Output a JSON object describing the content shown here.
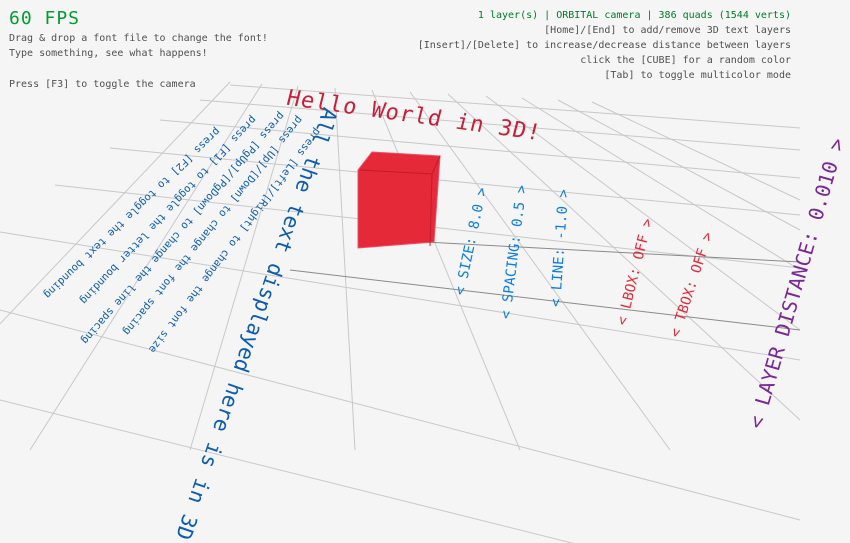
{
  "hud": {
    "fps": "60 FPS",
    "left_lines": [
      "Drag & drop a font file to change the font!",
      "Type something, see what happens!",
      "Press [F3] to toggle the camera"
    ],
    "status": "1 layer(s) | ORBITAL camera |  386 quads (1544 verts)",
    "right_lines": [
      "[Home]/[End] to add/remove 3D text layers",
      "[Insert]/[Delete] to increase/decrease distance between layers",
      "click the [CUBE] for a random color",
      "[Tab] to toggle multicolor mode"
    ],
    "colors": {
      "fps": "#009e2f",
      "status": "#007a2a",
      "text": "#505050"
    }
  },
  "scene": {
    "hello_text": "Hello World in 3D!",
    "cube_color": "#e62938",
    "main_text": "All the text displayed here is in 3D",
    "help_lines": [
      "press [F2] to toggle the text bounding",
      "press [F1] to toggle the letter bounding",
      "press [PgUp]/[PgDown] to change the line spacing",
      "press [Up]/[Down] to change the font spacing",
      "press [Left]/[Right] to change the font size"
    ],
    "labels": {
      "size": "< SIZE: 8.0 >",
      "spacing": "< SPACING: 0.5 >",
      "line": "< LINE: -1.0 >",
      "lbox": "< LBOX: OFF >",
      "tbox": "< TBOX: OFF >",
      "layer_distance": "< LAYER DISTANCE: 0.010 >"
    }
  }
}
